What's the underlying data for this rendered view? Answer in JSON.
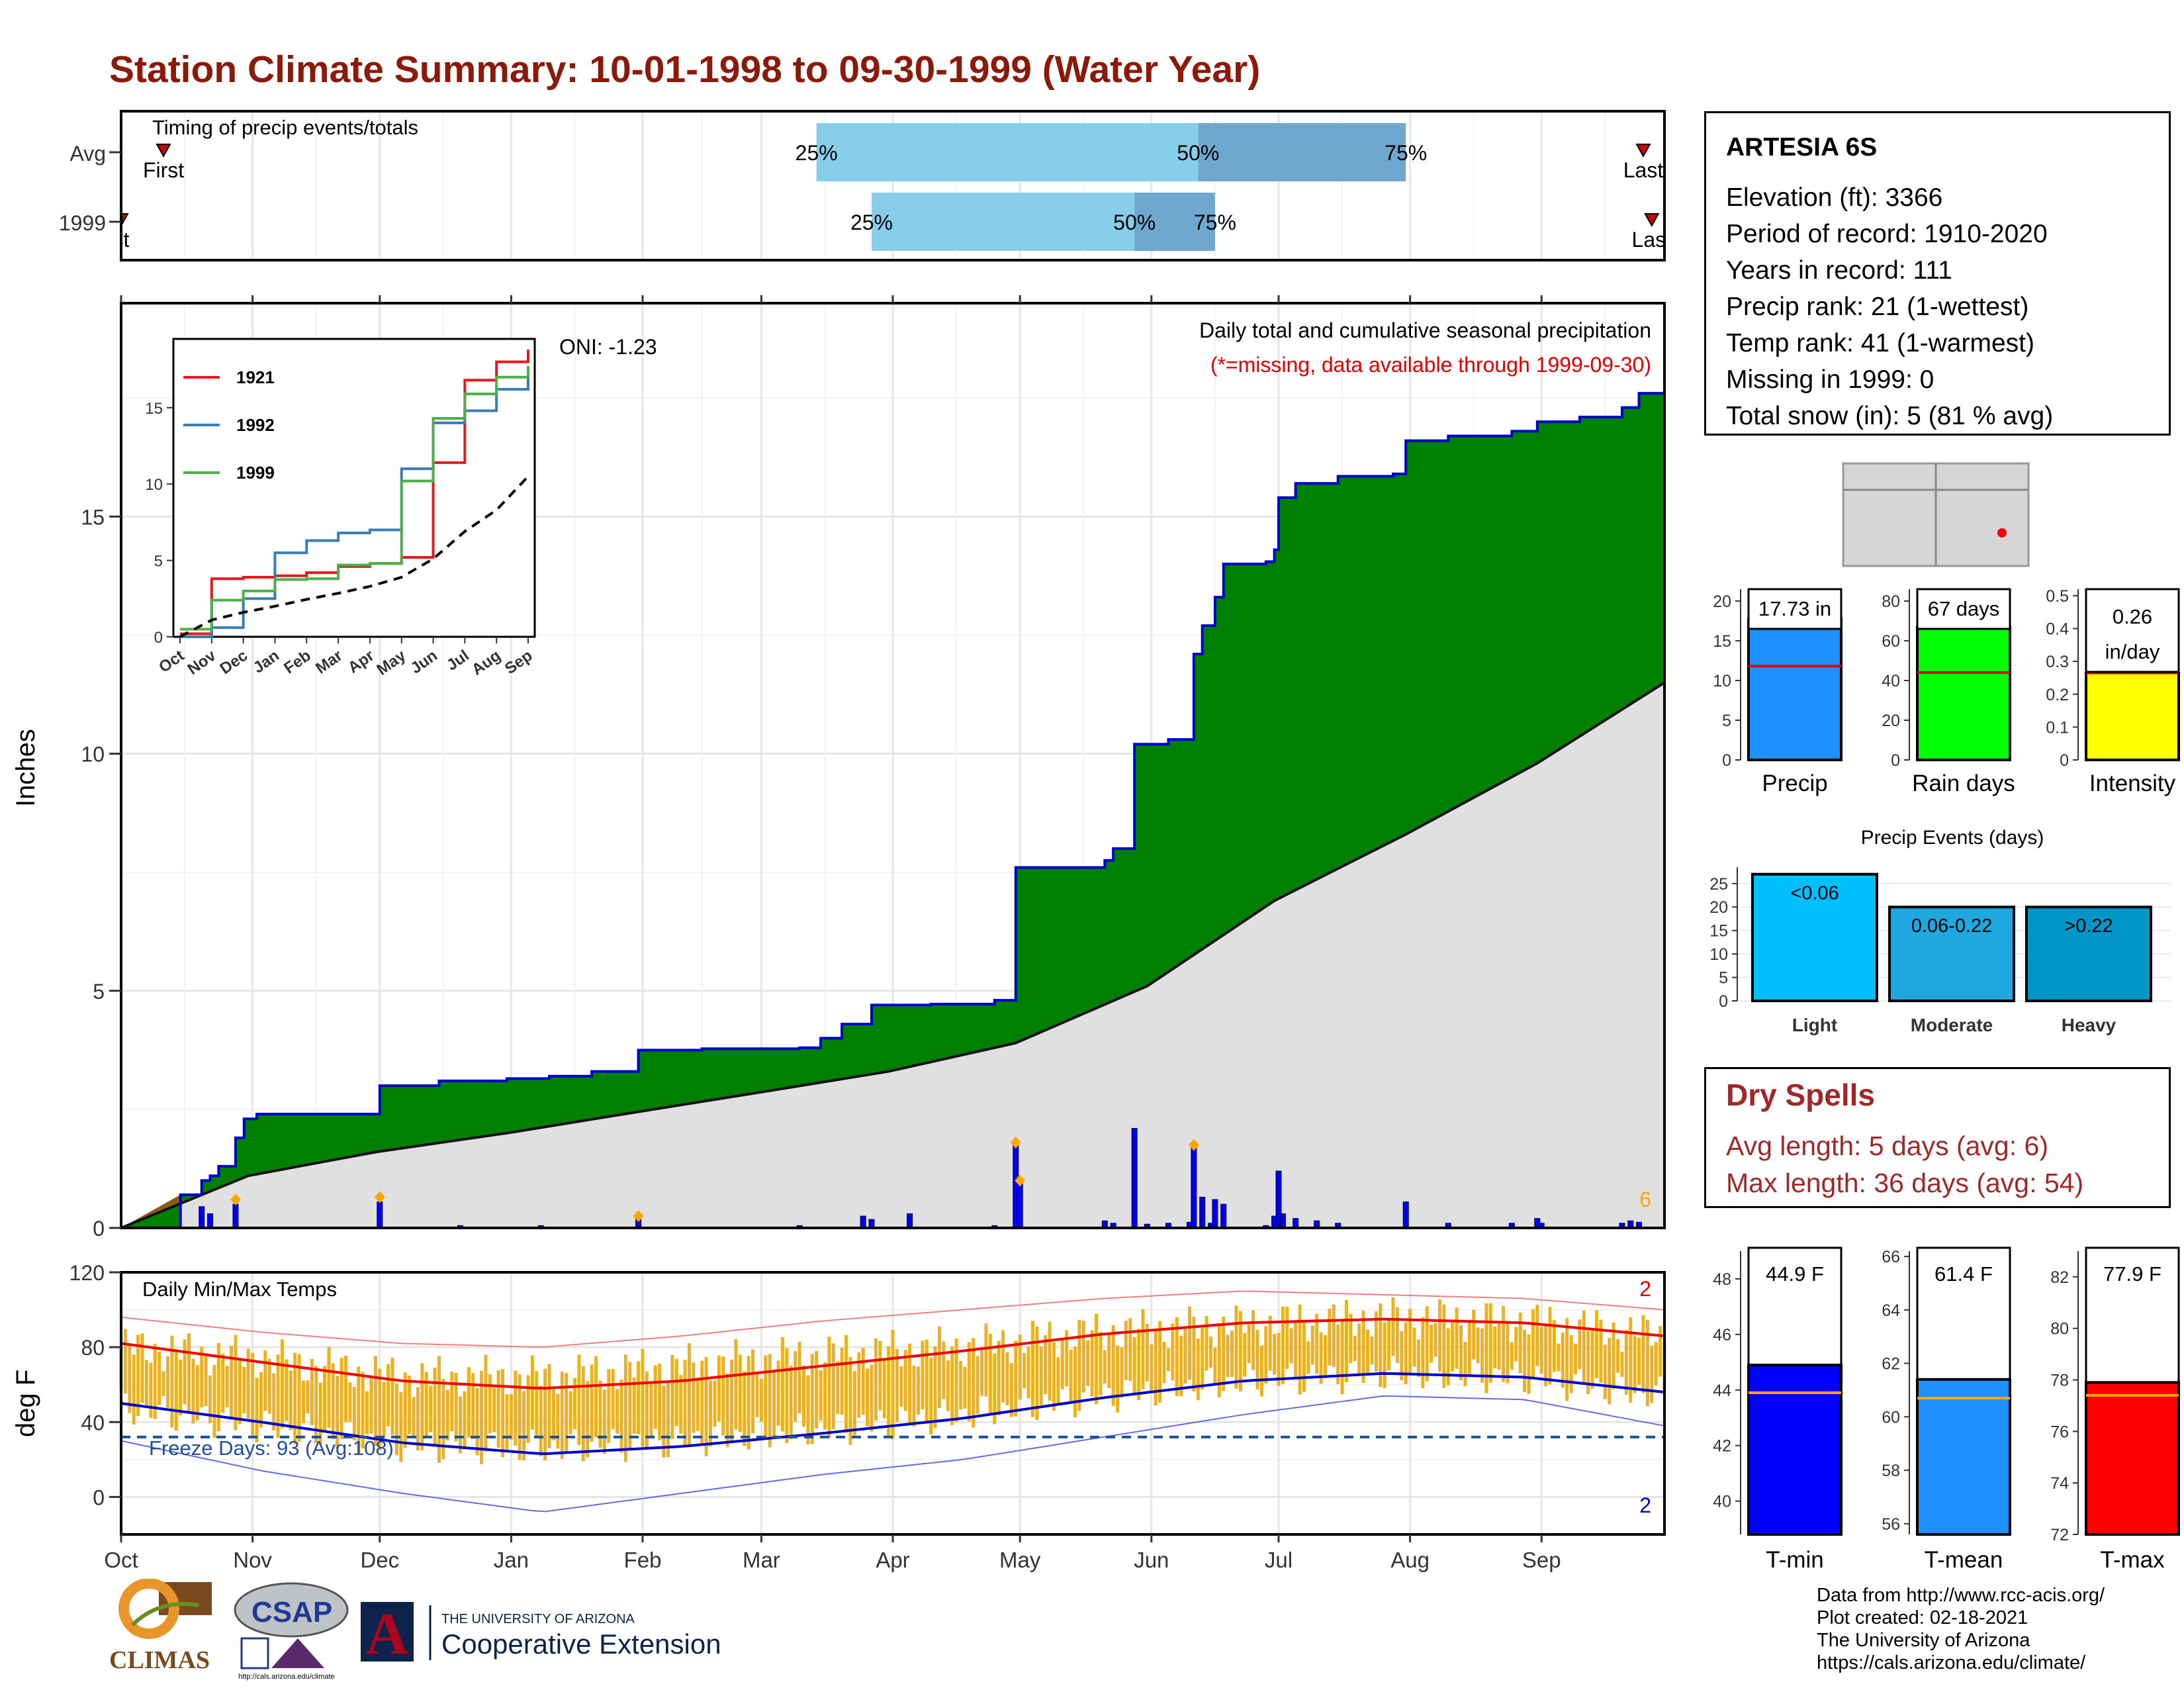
{
  "title": "Station Climate Summary: 10-01-1998 to 09-30-1999 (Water Year)",
  "timing_panel": {
    "label": "Timing of precip events/totals",
    "rows": [
      "Avg",
      "1999"
    ],
    "first_label": "First",
    "last_label": "Last",
    "first_label_1999": "st",
    "pct_labels": [
      "25%",
      "50%",
      "75%"
    ],
    "avg_pct_dates": [
      "1999-03-14",
      "1999-06-12",
      "1999-07-31"
    ],
    "y1999_pct_dates": [
      "1999-03-27",
      "1999-05-28",
      "1999-06-16"
    ],
    "avg_first": "1998-10-11",
    "avg_last": "1999-09-25",
    "y1999_first": "1998-10-01",
    "y1999_last": "1999-09-27",
    "colors": {
      "light": "#87CEEB",
      "dark": "#6FA8CF",
      "marker": "#CC0000"
    }
  },
  "precip_panel": {
    "ylabel": "Inches",
    "yticks": [
      0,
      5,
      10,
      15
    ],
    "annotation_title": "Daily total and cumulative seasonal precipitation",
    "annotation_missing": "(*=missing, data available through 1999-09-30)",
    "oni": "ONI: -1.23",
    "count_label": "6",
    "colors": {
      "surplus": "#008000",
      "deficit": "#8B5A1A",
      "normal": "#E0E0E0",
      "cum_line": "#0000CC",
      "daily": "#0000EE",
      "extreme": "#FFA500"
    }
  },
  "inset": {
    "xticks": [
      "Oct",
      "Nov",
      "Dec",
      "Jan",
      "Feb",
      "Mar",
      "Apr",
      "May",
      "Jun",
      "Jul",
      "Aug",
      "Sep"
    ],
    "yticks": [
      0,
      5,
      10,
      15
    ],
    "legend": [
      {
        "label": "1921",
        "color": "#E41A1C"
      },
      {
        "label": "1992",
        "color": "#377EB8"
      },
      {
        "label": "1999",
        "color": "#4DAF4A"
      }
    ]
  },
  "temp_panel": {
    "ylabel": "deg F",
    "label": "Daily Min/Max Temps",
    "freeze_label": "Freeze Days: 93 (Avg:108)",
    "yticks": [
      0,
      40,
      80,
      120
    ],
    "count_top": "2",
    "count_bottom": "2",
    "colors": {
      "bar": "#EDB120",
      "max_avg": "#EE0000",
      "min_avg": "#0000CC",
      "max_rec": "#F08080",
      "min_rec": "#6A6AE0",
      "freeze": "#1F4E9A"
    }
  },
  "months": [
    "Oct",
    "Nov",
    "Dec",
    "Jan",
    "Feb",
    "Mar",
    "Apr",
    "May",
    "Jun",
    "Jul",
    "Aug",
    "Sep"
  ],
  "station": {
    "name": "ARTESIA 6S",
    "lines": [
      "Elevation (ft): 3366",
      "Period of record: 1910-2020",
      "Years in record: 111",
      "Precip rank: 21 (1-wettest)",
      "Temp rank: 41 (1-warmest)",
      "Missing in 1999: 0",
      "Total snow (in): 5 (81 % avg)"
    ]
  },
  "summary_bars": [
    {
      "label": "Precip",
      "value_text": "17.73 in",
      "value": 17.73,
      "avg": 11.8,
      "ymax": 21.5,
      "yticks": [
        0,
        5,
        10,
        15,
        20
      ],
      "color": "#1E90FF"
    },
    {
      "label": "Rain days",
      "value_text": "67 days",
      "value": 67,
      "avg": 44,
      "ymax": 86,
      "yticks": [
        0,
        20,
        40,
        60,
        80
      ],
      "color": "#00FF00"
    },
    {
      "label": "Intensity",
      "value_text": "0.26",
      "value_text2": "in/day",
      "value": 0.265,
      "avg": 0.265,
      "ymax": 0.52,
      "yticks": [
        0.0,
        0.1,
        0.2,
        0.3,
        0.4,
        0.5
      ],
      "color": "#FFFF00"
    }
  ],
  "precip_events": {
    "title": "Precip Events (days)",
    "yticks": [
      0,
      5,
      10,
      15,
      20,
      25
    ],
    "bars": [
      {
        "label": "Light",
        "bar_label": "<0.06",
        "value": 27,
        "color": "#00BFFF"
      },
      {
        "label": "Moderate",
        "bar_label": "0.06-0.22",
        "value": 20,
        "color": "#1FA8E0"
      },
      {
        "label": "Heavy",
        "bar_label": ">0.22",
        "value": 20,
        "color": "#0096C8"
      }
    ]
  },
  "dry_spells": {
    "title": "Dry Spells",
    "lines": [
      "Avg length: 5 days (avg: 6)",
      "Max length: 36 days (avg: 54)"
    ]
  },
  "temp_bars": [
    {
      "label": "T-min",
      "value_text": "44.9 F",
      "value": 44.9,
      "avg": 43.9,
      "ymin": 38.8,
      "ymax": 49,
      "yticks": [
        40,
        42,
        44,
        46,
        48
      ],
      "color": "#0000FF"
    },
    {
      "label": "T-mean",
      "value_text": "61.4 F",
      "value": 61.4,
      "avg": 60.7,
      "ymin": 55.6,
      "ymax": 66.2,
      "yticks": [
        56,
        58,
        60,
        62,
        64,
        66
      ],
      "color": "#1E90FF"
    },
    {
      "label": "T-max",
      "value_text": "77.9 F",
      "value": 77.9,
      "avg": 77.4,
      "ymin": 72,
      "ymax": 83,
      "yticks": [
        72,
        74,
        76,
        78,
        80,
        82
      ],
      "color": "#FF0000"
    }
  ],
  "footer": [
    "Data from http://www.rcc-acis.org/",
    "Plot created: 02-18-2021",
    "The University of Arizona",
    "https://cals.arizona.edu/climate/"
  ],
  "logos": {
    "climas": "CLIMAS",
    "csap": "CSAP",
    "csap_url": "http://cals.arizona.edu/climate",
    "ua_top": "THE UNIVERSITY OF ARIZONA",
    "ua_bottom": "Cooperative Extension",
    "ua_letter": "A"
  },
  "chart_data": {
    "type": "area",
    "title": "Station Climate Summary: 10-01-1998 to 09-30-1999 (Water Year)",
    "xlabel": "",
    "ylabel": "Inches",
    "ylim": [
      0,
      19.5
    ],
    "x_range": [
      "1998-10-01",
      "1999-09-30"
    ],
    "cumulative_1999": [
      [
        "1998-10-01",
        0
      ],
      [
        "1998-10-15",
        0.7
      ],
      [
        "1998-10-20",
        1.0
      ],
      [
        "1998-10-22",
        1.1
      ],
      [
        "1998-10-24",
        1.3
      ],
      [
        "1998-10-28",
        1.9
      ],
      [
        "1998-10-30",
        2.3
      ],
      [
        "1998-11-02",
        2.4
      ],
      [
        "1998-11-30",
        2.4
      ],
      [
        "1998-12-01",
        3.0
      ],
      [
        "1998-12-15",
        3.1
      ],
      [
        "1998-12-31",
        3.15
      ],
      [
        "1999-01-10",
        3.2
      ],
      [
        "1999-01-20",
        3.3
      ],
      [
        "1999-01-31",
        3.75
      ],
      [
        "1999-02-15",
        3.78
      ],
      [
        "1999-03-10",
        3.8
      ],
      [
        "1999-03-15",
        4.0
      ],
      [
        "1999-03-20",
        4.3
      ],
      [
        "1999-03-27",
        4.7
      ],
      [
        "1999-04-10",
        4.72
      ],
      [
        "1999-04-25",
        4.8
      ],
      [
        "1999-04-30",
        7.6
      ],
      [
        "1999-05-21",
        7.75
      ],
      [
        "1999-05-23",
        8.0
      ],
      [
        "1999-05-28",
        10.2
      ],
      [
        "1999-06-05",
        10.3
      ],
      [
        "1999-06-11",
        12.1
      ],
      [
        "1999-06-13",
        12.7
      ],
      [
        "1999-06-16",
        13.3
      ],
      [
        "1999-06-18",
        14.0
      ],
      [
        "1999-06-28",
        14.05
      ],
      [
        "1999-06-30",
        14.3
      ],
      [
        "1999-07-01",
        15.4
      ],
      [
        "1999-07-05",
        15.7
      ],
      [
        "1999-07-15",
        15.85
      ],
      [
        "1999-07-28",
        15.9
      ],
      [
        "1999-07-31",
        16.6
      ],
      [
        "1999-08-10",
        16.7
      ],
      [
        "1999-08-25",
        16.8
      ],
      [
        "1999-08-31",
        17.0
      ],
      [
        "1999-09-10",
        17.1
      ],
      [
        "1999-09-20",
        17.3
      ],
      [
        "1999-09-24",
        17.6
      ],
      [
        "1999-09-30",
        17.73
      ]
    ],
    "cumulative_normal": [
      [
        "1998-10-01",
        0
      ],
      [
        "1998-10-31",
        1.1
      ],
      [
        "1998-11-30",
        1.6
      ],
      [
        "1998-12-31",
        2.0
      ],
      [
        "1999-01-31",
        2.45
      ],
      [
        "1999-02-28",
        2.85
      ],
      [
        "1999-03-31",
        3.3
      ],
      [
        "1999-04-30",
        3.9
      ],
      [
        "1999-05-31",
        5.1
      ],
      [
        "1999-06-30",
        6.9
      ],
      [
        "1999-07-31",
        8.3
      ],
      [
        "1999-08-31",
        9.8
      ],
      [
        "1999-09-30",
        11.5
      ]
    ],
    "daily_precip": [
      [
        "1998-10-20",
        0.45
      ],
      [
        "1998-10-22",
        0.3
      ],
      [
        "1998-10-28",
        0.5
      ],
      [
        "1998-12-01",
        0.55
      ],
      [
        "1998-12-20",
        0.05
      ],
      [
        "1999-01-08",
        0.05
      ],
      [
        "1999-01-31",
        0.2
      ],
      [
        "1999-03-10",
        0.05
      ],
      [
        "1999-03-25",
        0.25
      ],
      [
        "1999-03-27",
        0.18
      ],
      [
        "1999-04-05",
        0.3
      ],
      [
        "1999-04-25",
        0.05
      ],
      [
        "1999-04-30",
        1.75
      ],
      [
        "1999-05-01",
        1.0
      ],
      [
        "1999-05-21",
        0.15
      ],
      [
        "1999-05-23",
        0.1
      ],
      [
        "1999-05-28",
        2.1
      ],
      [
        "1999-05-31",
        0.08
      ],
      [
        "1999-06-05",
        0.1
      ],
      [
        "1999-06-10",
        0.12
      ],
      [
        "1999-06-11",
        1.75
      ],
      [
        "1999-06-13",
        0.65
      ],
      [
        "1999-06-15",
        0.1
      ],
      [
        "1999-06-16",
        0.6
      ],
      [
        "1999-06-18",
        0.5
      ],
      [
        "1999-06-28",
        0.05
      ],
      [
        "1999-06-30",
        0.25
      ],
      [
        "1999-07-01",
        1.2
      ],
      [
        "1999-07-02",
        0.3
      ],
      [
        "1999-07-05",
        0.2
      ],
      [
        "1999-07-10",
        0.15
      ],
      [
        "1999-07-15",
        0.1
      ],
      [
        "1999-07-31",
        0.55
      ],
      [
        "1999-08-10",
        0.1
      ],
      [
        "1999-08-25",
        0.1
      ],
      [
        "1999-08-31",
        0.2
      ],
      [
        "1999-09-01",
        0.1
      ],
      [
        "1999-09-20",
        0.1
      ],
      [
        "1999-09-22",
        0.15
      ],
      [
        "1999-09-24",
        0.12
      ]
    ],
    "extreme_markers": [
      [
        "1998-10-28",
        0.6
      ],
      [
        "1998-12-01",
        0.65
      ],
      [
        "1999-01-31",
        0.25
      ],
      [
        "1999-04-30",
        1.8
      ],
      [
        "1999-05-01",
        1.0
      ],
      [
        "1999-06-11",
        1.75
      ]
    ],
    "inset_series": [
      {
        "name": "1921",
        "points": [
          [
            "Oct",
            0.2
          ],
          [
            "Nov",
            3.8
          ],
          [
            "Dec",
            3.9
          ],
          [
            "Jan",
            4.0
          ],
          [
            "Feb",
            4.2
          ],
          [
            "Mar",
            4.6
          ],
          [
            "Apr",
            4.8
          ],
          [
            "May",
            5.2
          ],
          [
            "Jun",
            11.4
          ],
          [
            "Jul",
            16.8
          ],
          [
            "Aug",
            18.0
          ],
          [
            "Sep",
            18.8
          ]
        ]
      },
      {
        "name": "1992",
        "points": [
          [
            "Oct",
            0.0
          ],
          [
            "Nov",
            0.6
          ],
          [
            "Dec",
            2.5
          ],
          [
            "Jan",
            5.5
          ],
          [
            "Feb",
            6.3
          ],
          [
            "Mar",
            6.8
          ],
          [
            "Apr",
            7.0
          ],
          [
            "May",
            11.0
          ],
          [
            "Jun",
            14.0
          ],
          [
            "Jul",
            14.8
          ],
          [
            "Aug",
            16.2
          ],
          [
            "Sep",
            17.4
          ]
        ]
      },
      {
        "name": "1999",
        "points": [
          [
            "Oct",
            0.5
          ],
          [
            "Nov",
            2.4
          ],
          [
            "Dec",
            3.0
          ],
          [
            "Jan",
            3.75
          ],
          [
            "Feb",
            3.8
          ],
          [
            "Mar",
            4.7
          ],
          [
            "Apr",
            4.8
          ],
          [
            "May",
            10.2
          ],
          [
            "Jun",
            14.3
          ],
          [
            "Jul",
            15.9
          ],
          [
            "Aug",
            17.0
          ],
          [
            "Sep",
            17.73
          ]
        ]
      },
      {
        "name": "",
        "points": [
          [
            "Oct",
            0.0
          ],
          [
            "Nov",
            1.1
          ],
          [
            "Dec",
            1.6
          ],
          [
            "Jan",
            2.0
          ],
          [
            "Feb",
            2.45
          ],
          [
            "Mar",
            2.85
          ],
          [
            "Apr",
            3.3
          ],
          [
            "May",
            3.9
          ],
          [
            "Jun",
            5.1
          ],
          [
            "Jul",
            6.9
          ],
          [
            "Aug",
            8.3
          ],
          [
            "Sep",
            10.5
          ]
        ]
      }
    ],
    "temperature": {
      "ylim": [
        -20,
        120
      ],
      "freeze_line": 32,
      "avg_max": [
        [
          "Oct",
          82
        ],
        [
          "Nov",
          72
        ],
        [
          "Dec",
          62
        ],
        [
          "Jan",
          58
        ],
        [
          "Feb",
          62
        ],
        [
          "Mar",
          70
        ],
        [
          "Apr",
          78
        ],
        [
          "May",
          87
        ],
        [
          "Jun",
          93
        ],
        [
          "Jul",
          95
        ],
        [
          "Aug",
          93
        ],
        [
          "Sep",
          86
        ]
      ],
      "avg_min": [
        [
          "Oct",
          50
        ],
        [
          "Nov",
          40
        ],
        [
          "Dec",
          29
        ],
        [
          "Jan",
          23
        ],
        [
          "Feb",
          27
        ],
        [
          "Mar",
          34
        ],
        [
          "Apr",
          42
        ],
        [
          "May",
          53
        ],
        [
          "Jun",
          62
        ],
        [
          "Jul",
          66
        ],
        [
          "Aug",
          64
        ],
        [
          "Sep",
          56
        ]
      ],
      "record_max": [
        [
          "Oct",
          96
        ],
        [
          "Nov",
          88
        ],
        [
          "Dec",
          82
        ],
        [
          "Jan",
          80
        ],
        [
          "Feb",
          86
        ],
        [
          "Mar",
          94
        ],
        [
          "Apr",
          100
        ],
        [
          "May",
          106
        ],
        [
          "Jun",
          110
        ],
        [
          "Jul",
          108
        ],
        [
          "Aug",
          106
        ],
        [
          "Sep",
          100
        ]
      ],
      "record_min": [
        [
          "Oct",
          30
        ],
        [
          "Nov",
          14
        ],
        [
          "Dec",
          2
        ],
        [
          "Jan",
          -8
        ],
        [
          "Feb",
          2
        ],
        [
          "Mar",
          12
        ],
        [
          "Apr",
          20
        ],
        [
          "May",
          32
        ],
        [
          "Jun",
          44
        ],
        [
          "Jul",
          54
        ],
        [
          "Aug",
          52
        ],
        [
          "Sep",
          38
        ]
      ],
      "observed_max": [
        [
          "Oct",
          80
        ],
        [
          "Nov",
          74
        ],
        [
          "Dec",
          64
        ],
        [
          "Jan",
          64
        ],
        [
          "Feb",
          70
        ],
        [
          "Mar",
          76
        ],
        [
          "Apr",
          80
        ],
        [
          "May",
          88
        ],
        [
          "Jun",
          92
        ],
        [
          "Jul",
          96
        ],
        [
          "Aug",
          94
        ],
        [
          "Sep",
          86
        ]
      ],
      "observed_min": [
        [
          "Oct",
          48
        ],
        [
          "Nov",
          38
        ],
        [
          "Dec",
          28
        ],
        [
          "Jan",
          26
        ],
        [
          "Feb",
          30
        ],
        [
          "Mar",
          36
        ],
        [
          "Apr",
          44
        ],
        [
          "May",
          54
        ],
        [
          "Jun",
          62
        ],
        [
          "Jul",
          66
        ],
        [
          "Aug",
          64
        ],
        [
          "Sep",
          54
        ]
      ]
    }
  }
}
